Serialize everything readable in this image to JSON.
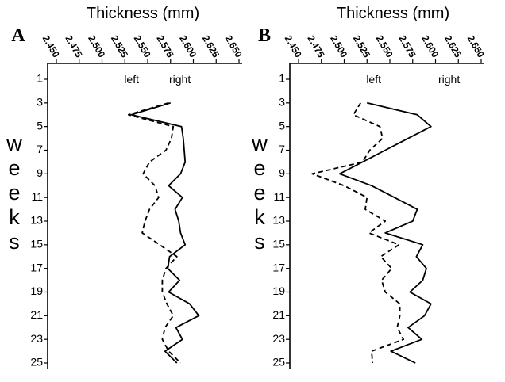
{
  "chart_data": [
    {
      "type": "line",
      "panel_label": "A",
      "xlabel": "Thickness (mm)",
      "ylabel_letters": [
        "w",
        "e",
        "e",
        "k",
        "s"
      ],
      "xlim": [
        2.45,
        2.65
      ],
      "x_ticks": [
        "2.450",
        "2.475",
        "2.500",
        "2.525",
        "2.550",
        "2.575",
        "2.600",
        "2.625",
        "2.650"
      ],
      "y_ticks": [
        "1",
        "3",
        "5",
        "7",
        "9",
        "11",
        "13",
        "15",
        "17",
        "19",
        "21",
        "23",
        "25"
      ],
      "ylim": [
        25,
        1
      ],
      "legend": {
        "left": "left",
        "right": "right"
      },
      "series": [
        {
          "name": "left",
          "style": "dashed",
          "weeks": [
            3,
            4,
            5,
            6,
            7,
            8,
            9,
            10,
            11,
            12,
            13,
            14,
            15,
            16,
            17,
            18,
            19,
            20,
            21,
            22,
            23,
            24,
            25
          ],
          "values": [
            2.573,
            2.529,
            2.578,
            2.576,
            2.57,
            2.552,
            2.545,
            2.558,
            2.562,
            2.552,
            2.547,
            2.544,
            2.563,
            2.582,
            2.57,
            2.566,
            2.566,
            2.571,
            2.578,
            2.569,
            2.566,
            2.573,
            2.586
          ]
        },
        {
          "name": "right",
          "style": "solid",
          "weeks": [
            3,
            4,
            5,
            6,
            7,
            8,
            9,
            10,
            11,
            12,
            13,
            14,
            15,
            16,
            17,
            18,
            19,
            20,
            21,
            22,
            23,
            24,
            25
          ],
          "values": [
            2.575,
            2.532,
            2.587,
            2.589,
            2.59,
            2.591,
            2.586,
            2.573,
            2.588,
            2.58,
            2.584,
            2.586,
            2.591,
            2.574,
            2.572,
            2.585,
            2.573,
            2.596,
            2.606,
            2.581,
            2.588,
            2.569,
            2.582
          ]
        }
      ]
    },
    {
      "type": "line",
      "panel_label": "B",
      "xlabel": "Thickness (mm)",
      "ylabel_letters": [
        "w",
        "e",
        "e",
        "k",
        "s"
      ],
      "xlim": [
        2.45,
        2.65
      ],
      "x_ticks": [
        "2.450",
        "2.475",
        "2.500",
        "2.525",
        "2.550",
        "2.575",
        "2.600",
        "2.625",
        "2.650"
      ],
      "y_ticks": [
        "1",
        "3",
        "5",
        "7",
        "9",
        "11",
        "13",
        "15",
        "17",
        "19",
        "21",
        "23",
        "25"
      ],
      "ylim": [
        25,
        1
      ],
      "legend": {
        "left": "left",
        "right": "right"
      },
      "series": [
        {
          "name": "left",
          "style": "dashed",
          "weeks": [
            3,
            4,
            5,
            6,
            7,
            8,
            9,
            10,
            11,
            12,
            13,
            14,
            15,
            16,
            17,
            18,
            19,
            20,
            21,
            22,
            23,
            24,
            25
          ],
          "values": [
            2.518,
            2.51,
            2.539,
            2.542,
            2.528,
            2.52,
            2.465,
            2.5,
            2.525,
            2.523,
            2.545,
            2.527,
            2.56,
            2.54,
            2.552,
            2.541,
            2.545,
            2.561,
            2.561,
            2.558,
            2.565,
            2.53,
            2.531
          ]
        },
        {
          "name": "right",
          "style": "solid",
          "weeks": [
            3,
            4,
            5,
            6,
            7,
            8,
            9,
            10,
            11,
            12,
            13,
            14,
            15,
            16,
            17,
            18,
            19,
            20,
            21,
            22,
            23,
            24,
            25
          ],
          "values": [
            2.525,
            2.58,
            2.595,
            2.57,
            2.545,
            2.52,
            2.495,
            2.53,
            2.555,
            2.58,
            2.575,
            2.545,
            2.586,
            2.579,
            2.59,
            2.586,
            2.572,
            2.595,
            2.588,
            2.57,
            2.585,
            2.551,
            2.578
          ]
        }
      ]
    }
  ]
}
